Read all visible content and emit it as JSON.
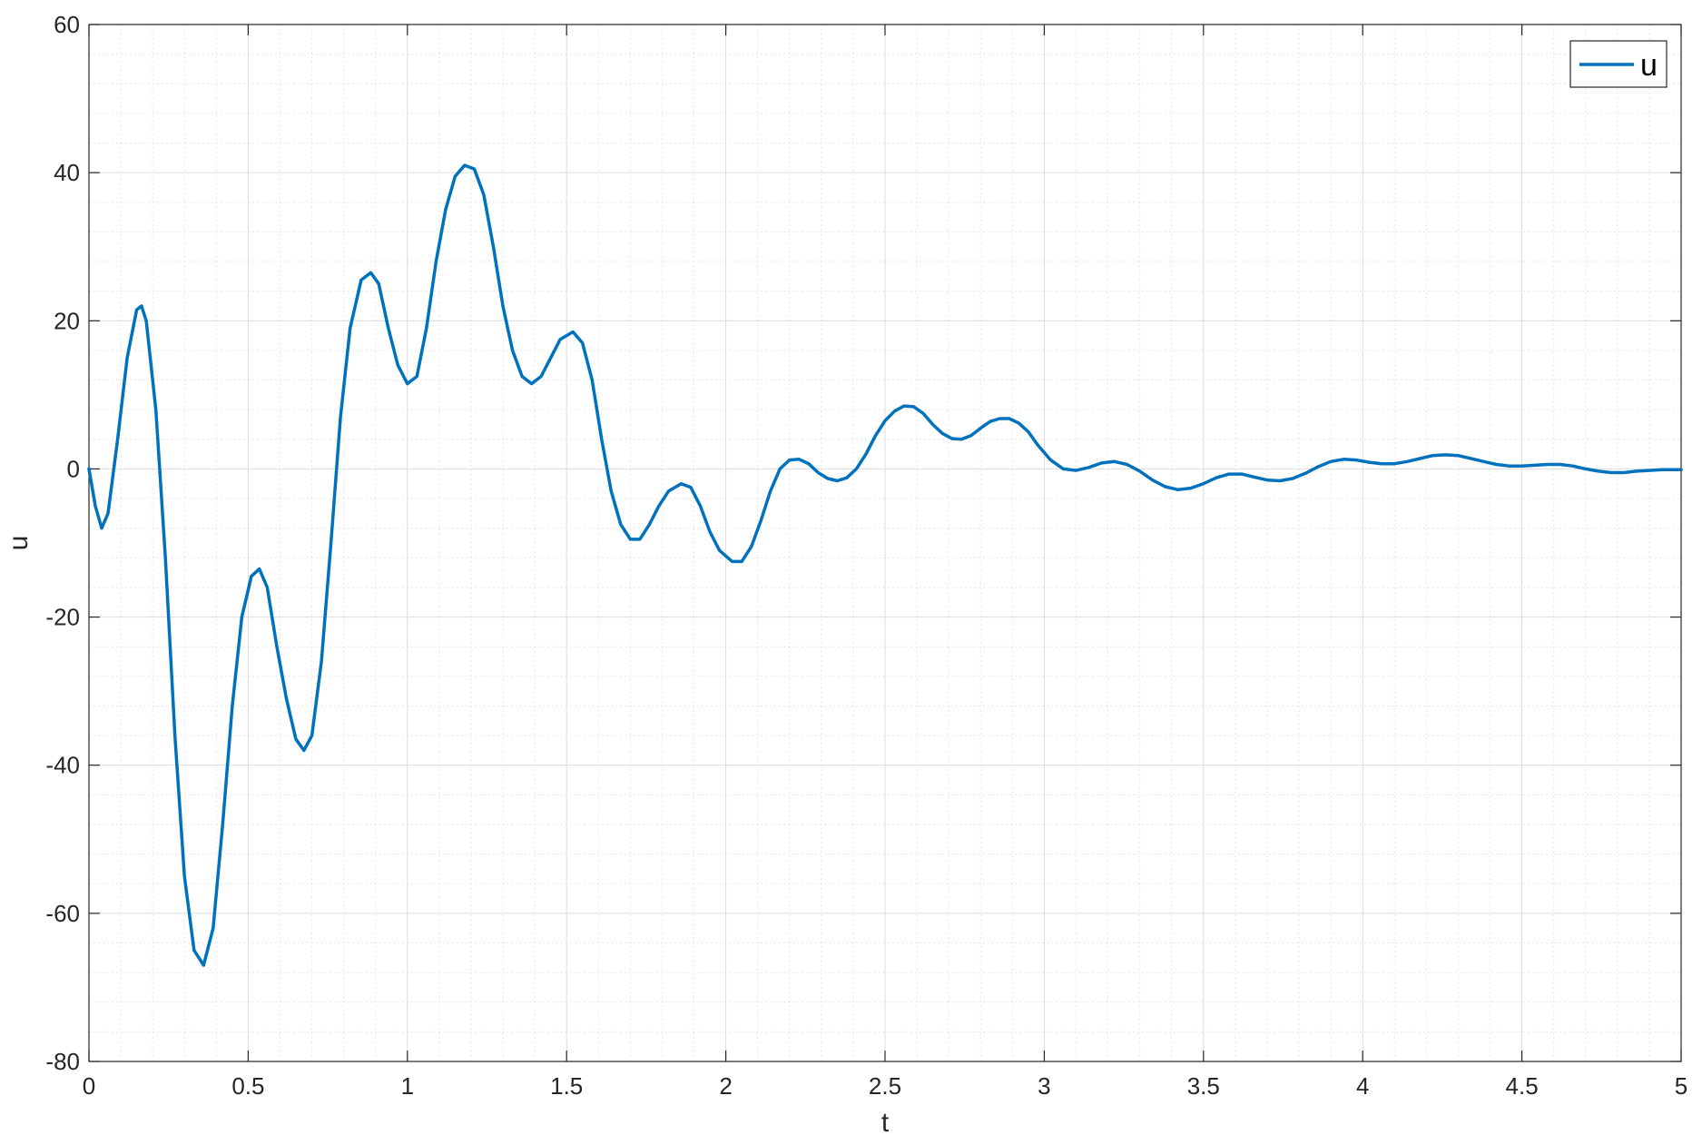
{
  "chart_data": {
    "type": "line",
    "xlabel": "t",
    "ylabel": "u",
    "xlim": [
      0,
      5
    ],
    "ylim": [
      -80,
      60
    ],
    "xticks": [
      0,
      0.5,
      1,
      1.5,
      2,
      2.5,
      3,
      3.5,
      4,
      4.5,
      5
    ],
    "xtick_labels": [
      "0",
      "0.5",
      "1",
      "1.5",
      "2",
      "2.5",
      "3",
      "3.5",
      "4",
      "4.5",
      "5"
    ],
    "yticks": [
      -80,
      -60,
      -40,
      -20,
      0,
      20,
      40,
      60
    ],
    "ytick_labels": [
      "-80",
      "-60",
      "-40",
      "-20",
      "0",
      "20",
      "40",
      "60"
    ],
    "grid": true,
    "minor_grid": true,
    "legend_position": "top-right",
    "series": [
      {
        "name": "u",
        "color": "#0072BD",
        "points": [
          [
            0,
            0
          ],
          [
            0.02,
            -5
          ],
          [
            0.04,
            -8
          ],
          [
            0.06,
            -6
          ],
          [
            0.09,
            4
          ],
          [
            0.12,
            15
          ],
          [
            0.15,
            21.5
          ],
          [
            0.165,
            22
          ],
          [
            0.18,
            20
          ],
          [
            0.21,
            8
          ],
          [
            0.24,
            -12
          ],
          [
            0.27,
            -36
          ],
          [
            0.3,
            -55
          ],
          [
            0.33,
            -65
          ],
          [
            0.36,
            -67
          ],
          [
            0.39,
            -62
          ],
          [
            0.42,
            -48
          ],
          [
            0.45,
            -32
          ],
          [
            0.48,
            -20
          ],
          [
            0.51,
            -14.5
          ],
          [
            0.535,
            -13.5
          ],
          [
            0.56,
            -16
          ],
          [
            0.59,
            -24
          ],
          [
            0.62,
            -31
          ],
          [
            0.65,
            -36.5
          ],
          [
            0.675,
            -38
          ],
          [
            0.7,
            -36
          ],
          [
            0.73,
            -26
          ],
          [
            0.76,
            -10
          ],
          [
            0.79,
            7
          ],
          [
            0.82,
            19
          ],
          [
            0.855,
            25.5
          ],
          [
            0.885,
            26.5
          ],
          [
            0.91,
            25
          ],
          [
            0.94,
            19
          ],
          [
            0.97,
            14
          ],
          [
            1.0,
            11.5
          ],
          [
            1.03,
            12.5
          ],
          [
            1.06,
            19
          ],
          [
            1.09,
            28
          ],
          [
            1.12,
            35
          ],
          [
            1.15,
            39.5
          ],
          [
            1.18,
            41
          ],
          [
            1.21,
            40.5
          ],
          [
            1.24,
            37
          ],
          [
            1.27,
            30
          ],
          [
            1.3,
            22
          ],
          [
            1.33,
            16
          ],
          [
            1.36,
            12.5
          ],
          [
            1.39,
            11.5
          ],
          [
            1.42,
            12.5
          ],
          [
            1.45,
            15
          ],
          [
            1.48,
            17.5
          ],
          [
            1.52,
            18.5
          ],
          [
            1.55,
            17
          ],
          [
            1.58,
            12
          ],
          [
            1.61,
            4
          ],
          [
            1.64,
            -3
          ],
          [
            1.67,
            -7.5
          ],
          [
            1.7,
            -9.5
          ],
          [
            1.73,
            -9.5
          ],
          [
            1.76,
            -7.5
          ],
          [
            1.79,
            -5
          ],
          [
            1.82,
            -3
          ],
          [
            1.86,
            -2
          ],
          [
            1.89,
            -2.5
          ],
          [
            1.92,
            -5
          ],
          [
            1.95,
            -8.5
          ],
          [
            1.98,
            -11
          ],
          [
            2.02,
            -12.5
          ],
          [
            2.05,
            -12.5
          ],
          [
            2.08,
            -10.5
          ],
          [
            2.11,
            -7
          ],
          [
            2.14,
            -3
          ],
          [
            2.17,
            0
          ],
          [
            2.2,
            1.2
          ],
          [
            2.23,
            1.3
          ],
          [
            2.26,
            0.7
          ],
          [
            2.29,
            -0.5
          ],
          [
            2.32,
            -1.3
          ],
          [
            2.35,
            -1.6
          ],
          [
            2.38,
            -1.2
          ],
          [
            2.41,
            0
          ],
          [
            2.44,
            2
          ],
          [
            2.47,
            4.5
          ],
          [
            2.5,
            6.5
          ],
          [
            2.53,
            7.8
          ],
          [
            2.56,
            8.5
          ],
          [
            2.59,
            8.4
          ],
          [
            2.62,
            7.5
          ],
          [
            2.65,
            6
          ],
          [
            2.68,
            4.8
          ],
          [
            2.71,
            4.1
          ],
          [
            2.74,
            4
          ],
          [
            2.77,
            4.5
          ],
          [
            2.8,
            5.5
          ],
          [
            2.83,
            6.4
          ],
          [
            2.86,
            6.8
          ],
          [
            2.89,
            6.8
          ],
          [
            2.92,
            6.2
          ],
          [
            2.95,
            5
          ],
          [
            2.98,
            3.2
          ],
          [
            3.02,
            1.2
          ],
          [
            3.06,
            0
          ],
          [
            3.1,
            -0.2
          ],
          [
            3.14,
            0.2
          ],
          [
            3.18,
            0.8
          ],
          [
            3.22,
            1
          ],
          [
            3.26,
            0.6
          ],
          [
            3.3,
            -0.3
          ],
          [
            3.34,
            -1.5
          ],
          [
            3.38,
            -2.4
          ],
          [
            3.42,
            -2.8
          ],
          [
            3.46,
            -2.6
          ],
          [
            3.5,
            -2
          ],
          [
            3.54,
            -1.2
          ],
          [
            3.58,
            -0.7
          ],
          [
            3.62,
            -0.7
          ],
          [
            3.66,
            -1.1
          ],
          [
            3.7,
            -1.5
          ],
          [
            3.74,
            -1.6
          ],
          [
            3.78,
            -1.3
          ],
          [
            3.82,
            -0.6
          ],
          [
            3.86,
            0.3
          ],
          [
            3.9,
            1
          ],
          [
            3.94,
            1.3
          ],
          [
            3.98,
            1.2
          ],
          [
            4.02,
            0.9
          ],
          [
            4.06,
            0.7
          ],
          [
            4.1,
            0.7
          ],
          [
            4.14,
            1
          ],
          [
            4.18,
            1.4
          ],
          [
            4.22,
            1.8
          ],
          [
            4.26,
            1.9
          ],
          [
            4.3,
            1.8
          ],
          [
            4.34,
            1.4
          ],
          [
            4.38,
            1
          ],
          [
            4.42,
            0.6
          ],
          [
            4.46,
            0.4
          ],
          [
            4.5,
            0.4
          ],
          [
            4.54,
            0.5
          ],
          [
            4.58,
            0.6
          ],
          [
            4.62,
            0.6
          ],
          [
            4.66,
            0.4
          ],
          [
            4.7,
            0
          ],
          [
            4.74,
            -0.3
          ],
          [
            4.78,
            -0.5
          ],
          [
            4.82,
            -0.5
          ],
          [
            4.86,
            -0.3
          ],
          [
            4.9,
            -0.2
          ],
          [
            4.94,
            -0.1
          ],
          [
            4.98,
            -0.1
          ],
          [
            5.0,
            -0.1
          ]
        ]
      }
    ]
  }
}
